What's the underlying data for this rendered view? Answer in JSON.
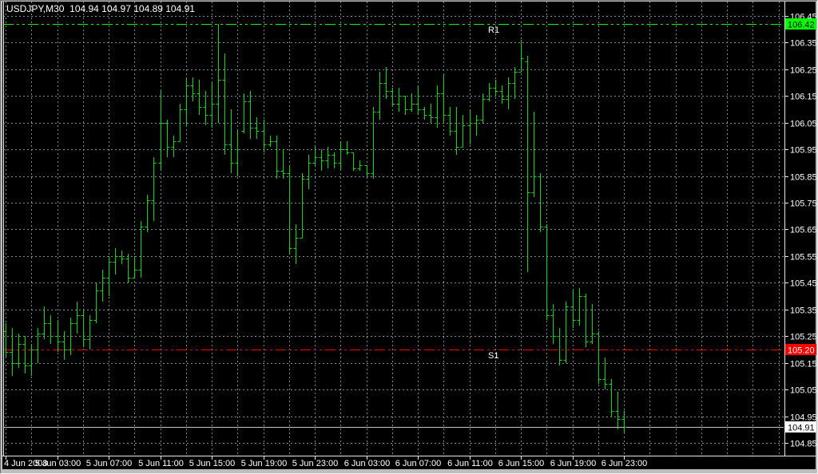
{
  "window": {
    "title_text": "USDJPY,M30  104.94 104.97 104.89 104.91"
  },
  "chart_data": {
    "type": "ohlc-bars",
    "symbol": "USDJPY",
    "timeframe": "M30",
    "ohlc_display": {
      "open": "104.94",
      "high": "104.97",
      "low": "104.89",
      "close": "104.91"
    },
    "ylim": [
      104.85,
      106.45
    ],
    "y_step": 0.1,
    "grid": true,
    "colors": {
      "background": "#000000",
      "grid": "#7a8a99",
      "bar": "#00e000",
      "r1_line": "#00ff00",
      "s1_line": "#ff0000",
      "current_price_line": "#c4c4c4",
      "frame": "#e9e9e9",
      "axis_text": "#ffffff"
    },
    "y_ticks": [
      "106.45",
      "106.35",
      "106.25",
      "106.15",
      "106.05",
      "105.95",
      "105.85",
      "105.75",
      "105.65",
      "105.55",
      "105.45",
      "105.35",
      "105.25",
      "105.15",
      "105.05",
      "104.95",
      "104.85"
    ],
    "x_ticks": [
      "4 Jun 2008",
      "5 Jun 03:00",
      "5 Jun 07:00",
      "5 Jun 11:00",
      "5 Jun 15:00",
      "5 Jun 19:00",
      "5 Jun 23:00",
      "6 Jun 03:00",
      "6 Jun 07:00",
      "6 Jun 11:00",
      "6 Jun 15:00",
      "6 Jun 19:00",
      "6 Jun 23:00"
    ],
    "levels": [
      {
        "name": "R1",
        "value": 106.42,
        "color": "#00ff00",
        "style": "dashdotdot"
      },
      {
        "name": "S1",
        "value": 105.2,
        "color": "#ff0000",
        "style": "dashdotdot"
      }
    ],
    "current_price": {
      "value": 104.91
    },
    "price_tags": [
      {
        "text": "106.42",
        "value": 106.42,
        "bg": "#00ff00",
        "fg": "#000000",
        "name": "r1"
      },
      {
        "text": "105.20",
        "value": 105.2,
        "bg": "#ff0000",
        "fg": "#ffffff",
        "name": "s1"
      },
      {
        "text": "104.91",
        "value": 104.91,
        "bg": "#ffffff",
        "fg": "#000000",
        "name": "current"
      }
    ],
    "columns": [
      "time",
      "open",
      "high",
      "low",
      "close"
    ],
    "bars": [
      [
        "4 Jun 23:00",
        105.27,
        105.3,
        105.17,
        105.19
      ],
      [
        "4 Jun 23:30",
        105.19,
        105.28,
        105.1,
        105.15
      ],
      [
        "5 Jun 00:00",
        105.15,
        105.26,
        105.13,
        105.22
      ],
      [
        "5 Jun 00:30",
        105.22,
        105.25,
        105.11,
        105.14
      ],
      [
        "5 Jun 01:00",
        105.14,
        105.22,
        105.1,
        105.2
      ],
      [
        "5 Jun 01:30",
        105.2,
        105.28,
        105.15,
        105.26
      ],
      [
        "5 Jun 02:00",
        105.26,
        105.36,
        105.24,
        105.3
      ],
      [
        "5 Jun 02:30",
        105.3,
        105.33,
        105.22,
        105.25
      ],
      [
        "5 Jun 03:00",
        105.25,
        105.31,
        105.19,
        105.23
      ],
      [
        "5 Jun 03:30",
        105.23,
        105.27,
        105.16,
        105.2
      ],
      [
        "5 Jun 04:00",
        105.2,
        105.32,
        105.18,
        105.3
      ],
      [
        "5 Jun 04:30",
        105.3,
        105.38,
        105.26,
        105.33
      ],
      [
        "5 Jun 05:00",
        105.33,
        105.35,
        105.21,
        105.24
      ],
      [
        "5 Jun 05:30",
        105.24,
        105.33,
        105.2,
        105.31
      ],
      [
        "5 Jun 06:00",
        105.31,
        105.45,
        105.3,
        105.42
      ],
      [
        "5 Jun 06:30",
        105.42,
        105.5,
        105.38,
        105.47
      ],
      [
        "5 Jun 07:00",
        105.47,
        105.55,
        105.4,
        105.53
      ],
      [
        "5 Jun 07:30",
        105.53,
        105.58,
        105.48,
        105.55
      ],
      [
        "5 Jun 08:00",
        105.55,
        105.57,
        105.52,
        105.54
      ],
      [
        "5 Jun 08:30",
        105.54,
        105.56,
        105.45,
        105.47
      ],
      [
        "5 Jun 09:00",
        105.47,
        105.55,
        105.47,
        105.5
      ],
      [
        "5 Jun 09:30",
        105.5,
        105.68,
        105.47,
        105.66
      ],
      [
        "5 Jun 10:00",
        105.66,
        105.78,
        105.64,
        105.76
      ],
      [
        "5 Jun 10:30",
        105.76,
        105.92,
        105.68,
        105.9
      ],
      [
        "5 Jun 11:00",
        105.9,
        106.17,
        105.87,
        106.05
      ],
      [
        "5 Jun 11:30",
        106.05,
        106.06,
        105.92,
        105.96
      ],
      [
        "5 Jun 12:00",
        105.96,
        106.0,
        105.92,
        105.98
      ],
      [
        "5 Jun 12:30",
        105.98,
        106.12,
        105.98,
        106.1
      ],
      [
        "5 Jun 13:00",
        106.1,
        106.22,
        106.04,
        106.19
      ],
      [
        "5 Jun 13:30",
        106.19,
        106.22,
        106.13,
        106.16
      ],
      [
        "5 Jun 14:00",
        106.16,
        106.21,
        106.08,
        106.11
      ],
      [
        "5 Jun 14:30",
        106.11,
        106.17,
        106.04,
        106.08
      ],
      [
        "5 Jun 15:00",
        106.08,
        106.2,
        106.03,
        106.12
      ],
      [
        "5 Jun 15:30",
        106.12,
        106.42,
        106.05,
        106.21
      ],
      [
        "5 Jun 16:00",
        106.21,
        106.31,
        105.93,
        105.97
      ],
      [
        "5 Jun 16:30",
        105.97,
        106.1,
        105.86,
        105.9
      ],
      [
        "5 Jun 17:00",
        105.9,
        106.02,
        105.85,
        105.95
      ],
      [
        "5 Jun 17:30",
        106.02,
        106.16,
        106.01,
        106.13
      ],
      [
        "5 Jun 18:00",
        106.13,
        106.17,
        105.99,
        106.03
      ],
      [
        "5 Jun 18:30",
        106.03,
        106.07,
        105.99,
        106.02
      ],
      [
        "5 Jun 19:00",
        106.02,
        106.06,
        105.94,
        105.97
      ],
      [
        "5 Jun 19:30",
        105.97,
        106.0,
        105.96,
        105.98
      ],
      [
        "5 Jun 20:00",
        105.98,
        106.0,
        105.84,
        105.87
      ],
      [
        "5 Jun 20:30",
        105.87,
        105.95,
        105.84,
        105.86
      ],
      [
        "5 Jun 21:00",
        105.86,
        105.89,
        105.56,
        105.58
      ],
      [
        "5 Jun 21:30",
        105.58,
        105.67,
        105.52,
        105.62
      ],
      [
        "5 Jun 22:00",
        105.62,
        105.86,
        105.62,
        105.84
      ],
      [
        "5 Jun 22:30",
        105.84,
        105.93,
        105.8,
        105.9
      ],
      [
        "5 Jun 23:00",
        105.9,
        105.96,
        105.89,
        105.92
      ],
      [
        "5 Jun 23:30",
        105.92,
        105.95,
        105.87,
        105.91
      ],
      [
        "6 Jun 00:00",
        105.91,
        105.96,
        105.88,
        105.93
      ],
      [
        "6 Jun 00:30",
        105.93,
        105.94,
        105.88,
        105.9
      ],
      [
        "6 Jun 01:00",
        105.9,
        105.98,
        105.87,
        105.95
      ],
      [
        "6 Jun 01:30",
        105.95,
        105.98,
        105.93,
        105.94
      ],
      [
        "6 Jun 02:00",
        105.94,
        105.94,
        105.87,
        105.88
      ],
      [
        "6 Jun 02:30",
        105.88,
        105.91,
        105.87,
        105.89
      ],
      [
        "6 Jun 03:00",
        105.89,
        105.89,
        105.85,
        105.86
      ],
      [
        "6 Jun 03:30",
        105.86,
        106.11,
        105.84,
        106.09
      ],
      [
        "6 Jun 04:00",
        106.09,
        106.24,
        106.06,
        106.2
      ],
      [
        "6 Jun 04:30",
        106.2,
        106.26,
        106.14,
        106.17
      ],
      [
        "6 Jun 05:00",
        106.17,
        106.18,
        106.11,
        106.12
      ],
      [
        "6 Jun 05:30",
        106.12,
        106.18,
        106.09,
        106.15
      ],
      [
        "6 Jun 06:00",
        106.15,
        106.15,
        106.08,
        106.1
      ],
      [
        "6 Jun 06:30",
        106.1,
        106.16,
        106.09,
        106.12
      ],
      [
        "6 Jun 07:00",
        106.12,
        106.19,
        106.08,
        106.1
      ],
      [
        "6 Jun 07:30",
        106.1,
        106.11,
        106.06,
        106.08
      ],
      [
        "6 Jun 08:00",
        106.08,
        106.12,
        106.05,
        106.07
      ],
      [
        "6 Jun 08:30",
        106.07,
        106.19,
        106.03,
        106.16
      ],
      [
        "6 Jun 09:00",
        106.16,
        106.23,
        106.05,
        106.08
      ],
      [
        "6 Jun 09:30",
        106.08,
        106.11,
        106.0,
        106.02
      ],
      [
        "6 Jun 10:00",
        106.02,
        106.11,
        105.93,
        105.96
      ],
      [
        "6 Jun 10:30",
        105.96,
        106.08,
        105.96,
        106.04
      ],
      [
        "6 Jun 11:00",
        106.04,
        106.1,
        105.97,
        106.05
      ],
      [
        "6 Jun 11:30",
        106.05,
        106.08,
        106.0,
        106.06
      ],
      [
        "6 Jun 12:00",
        106.06,
        106.16,
        106.05,
        106.14
      ],
      [
        "6 Jun 12:30",
        106.14,
        106.2,
        106.13,
        106.18
      ],
      [
        "6 Jun 13:00",
        106.18,
        106.21,
        106.15,
        106.17
      ],
      [
        "6 Jun 13:30",
        106.17,
        106.19,
        106.12,
        106.14
      ],
      [
        "6 Jun 14:00",
        106.14,
        106.22,
        106.1,
        106.2
      ],
      [
        "6 Jun 14:30",
        106.2,
        106.26,
        106.14,
        106.24
      ],
      [
        "6 Jun 15:00",
        106.24,
        106.36,
        106.24,
        106.29
      ],
      [
        "6 Jun 15:30",
        106.28,
        106.3,
        105.49,
        105.79
      ],
      [
        "6 Jun 16:00",
        105.79,
        106.09,
        105.77,
        105.85
      ],
      [
        "6 Jun 16:30",
        105.85,
        105.86,
        105.64,
        105.66
      ],
      [
        "6 Jun 17:00",
        105.66,
        105.67,
        105.31,
        105.33
      ],
      [
        "6 Jun 17:30",
        105.33,
        105.37,
        105.22,
        105.25
      ],
      [
        "6 Jun 18:00",
        105.25,
        105.28,
        105.14,
        105.16
      ],
      [
        "6 Jun 18:30",
        105.16,
        105.38,
        105.15,
        105.36
      ],
      [
        "6 Jun 19:00",
        105.36,
        105.42,
        105.28,
        105.31
      ],
      [
        "6 Jun 19:30",
        105.31,
        105.43,
        105.29,
        105.4
      ],
      [
        "6 Jun 20:00",
        105.4,
        105.41,
        105.21,
        105.23
      ],
      [
        "6 Jun 20:30",
        105.23,
        105.37,
        105.22,
        105.26
      ],
      [
        "6 Jun 21:00",
        105.26,
        105.27,
        105.07,
        105.09
      ],
      [
        "6 Jun 21:30",
        105.09,
        105.17,
        105.05,
        105.07
      ],
      [
        "6 Jun 22:00",
        105.07,
        105.09,
        104.95,
        104.97
      ],
      [
        "6 Jun 22:30",
        104.97,
        105.04,
        104.9,
        104.94
      ],
      [
        "6 Jun 23:00",
        104.94,
        104.97,
        104.89,
        104.91
      ]
    ]
  }
}
